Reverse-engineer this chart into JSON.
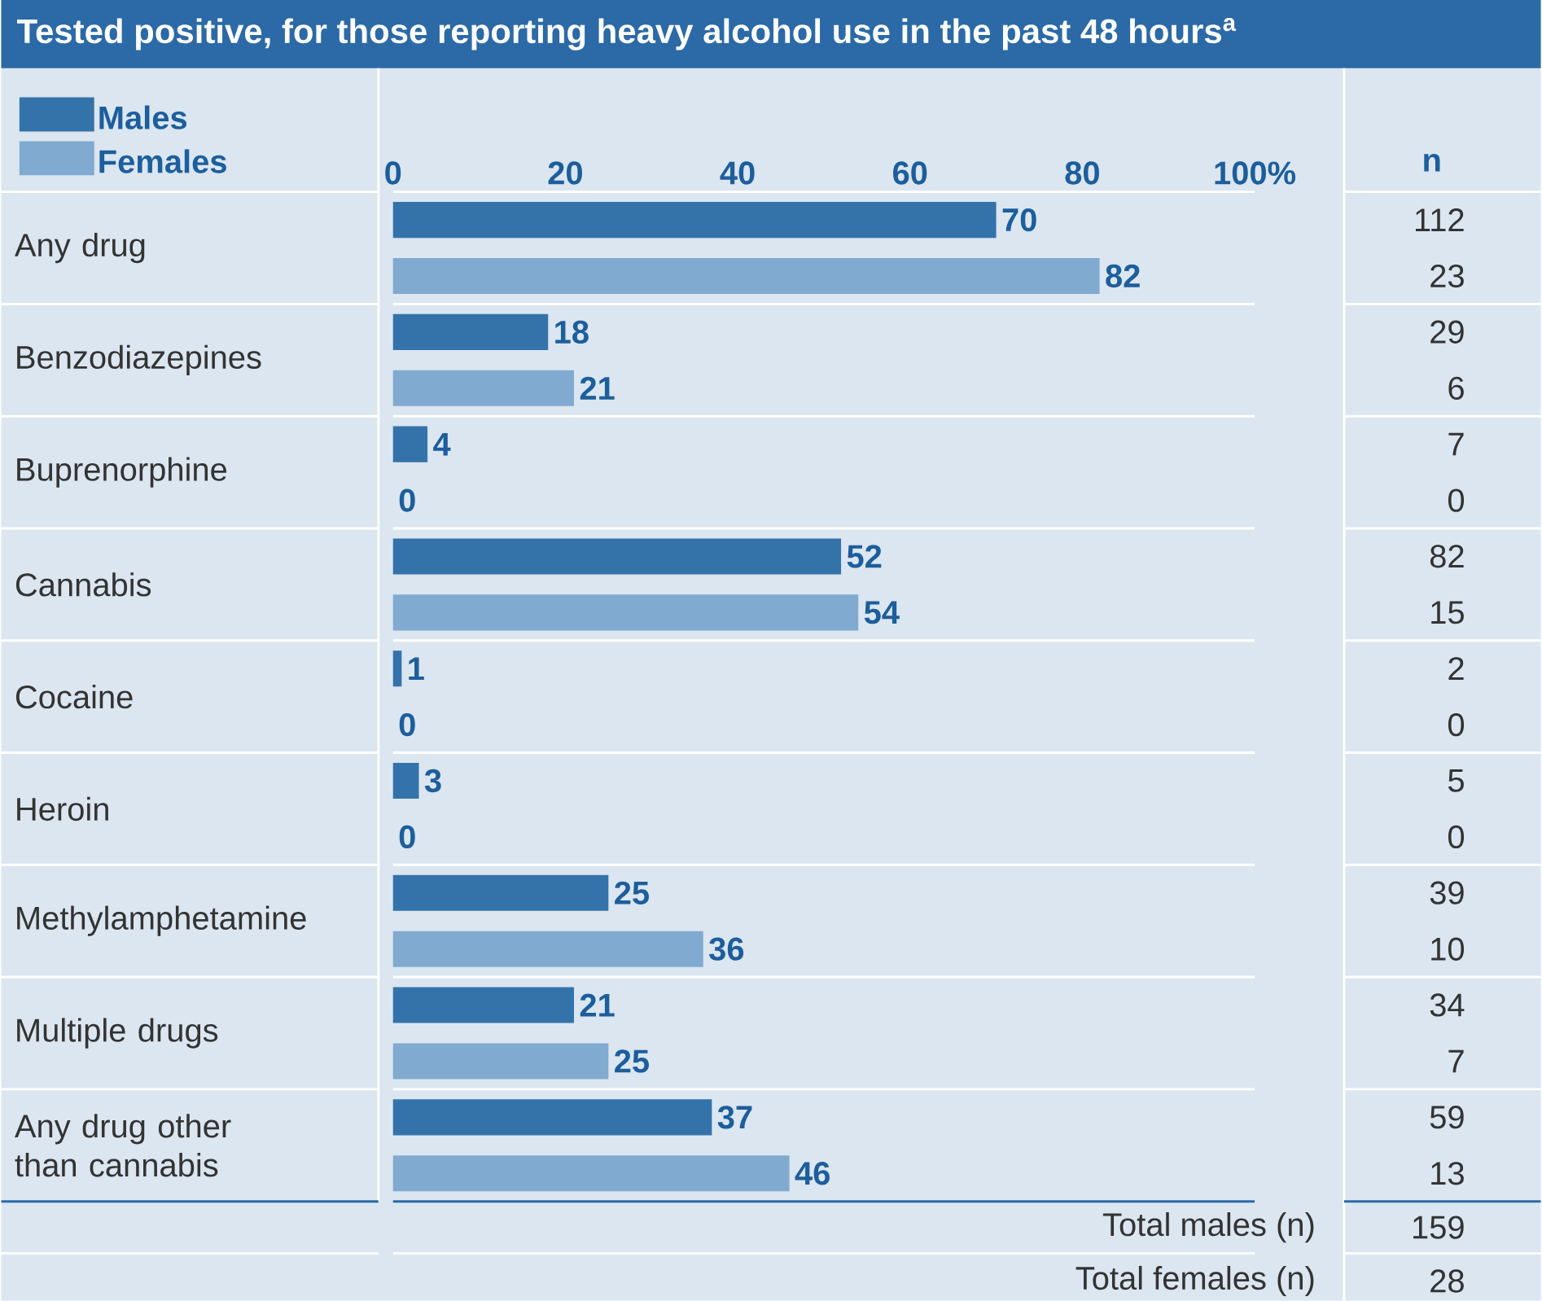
{
  "chart_data": {
    "type": "bar",
    "orientation": "horizontal",
    "title": "Tested positive, for those reporting heavy alcohol use in the past 48 hours$^{a}$",
    "categories": [
      "Any drug",
      "Benzodiazepines",
      "Buprenorphine",
      "Cannabis",
      "Cocaine",
      "Heroin",
      "Methylamphetamine",
      "Multiple drugs",
      "Any drug other than cannabis"
    ],
    "series": [
      {
        "name": "Males",
        "color": "#3473aa",
        "values": [
          70,
          18,
          4,
          52,
          1,
          3,
          25,
          21,
          37
        ]
      },
      {
        "name": "Females",
        "color": "#80aacf",
        "values": [
          82,
          21,
          0,
          54,
          0,
          0,
          36,
          25,
          46
        ]
      }
    ],
    "xlim": [
      0,
      100
    ],
    "xticks": [
      0,
      20,
      40,
      60,
      80,
      {
        "value": 100,
        "label": "100%"
      }
    ],
    "data_labels": true,
    "legend": "top left",
    "grid": false,
    "annotations": [
      "n",
      "112",
      "23",
      "29",
      "6",
      "7",
      "0",
      "82",
      "15",
      "2",
      "0",
      "5",
      "0",
      "39",
      "10",
      "34",
      "7",
      "59",
      "13",
      "Total males (n)",
      "159",
      "Total females (n)",
      "28"
    ]
  }
}
